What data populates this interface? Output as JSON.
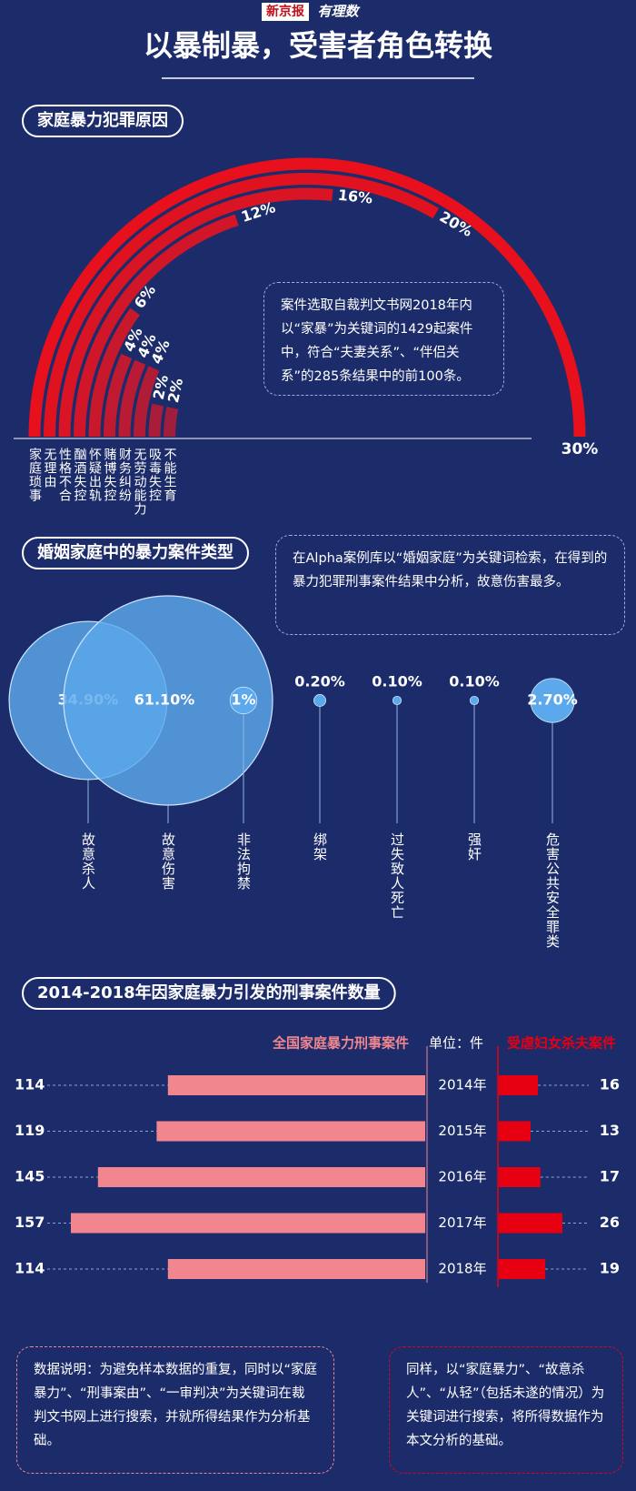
{
  "header": {
    "logo": [
      "新京报",
      "有理数"
    ],
    "title": "以暴制暴，受害者角色转换"
  },
  "chart_data": [
    {
      "type": "radial_bar",
      "title": "家庭暴力犯罪原因",
      "categories": [
        "家庭琐事",
        "无理由",
        "性格不合",
        "酗酒失控",
        "怀疑出轨",
        "赌博失控",
        "财务纠纷",
        "无劳动能力",
        "吸毒失控",
        "不能生育"
      ],
      "values": [
        30,
        20,
        16,
        12,
        6,
        4,
        4,
        4,
        2,
        2
      ],
      "value_labels": [
        "30%",
        "20%",
        "16%",
        "12%",
        "6%",
        "4%",
        "4%",
        "4%",
        "2%",
        "2%"
      ],
      "colors": [
        "#e8101c",
        "#e0121f",
        "#d91424",
        "#d01628",
        "#c8182c",
        "#c01a30",
        "#b81b33",
        "#b01c36",
        "#a81d39",
        "#a01e3c"
      ],
      "note": "案件选取自裁判文书网2018年内以“家暴”为关键词的1429起案件中，符合“夫妻关系”、“伴侣关系”的285条结果中的前100条。"
    },
    {
      "type": "bubble",
      "title": "婚姻家庭中的暴力案件类型",
      "categories": [
        "故意杀人",
        "故意伤害",
        "非法拘禁",
        "绑架",
        "过失致人死亡",
        "强奸",
        "危害公共安全罪类"
      ],
      "values": [
        34.9,
        61.1,
        1,
        0.2,
        0.1,
        0.1,
        2.7
      ],
      "value_labels": [
        "34.90%",
        "61.10%",
        "1%",
        "0.20%",
        "0.10%",
        "0.10%",
        "2.70%"
      ],
      "color": "#5ba8ec",
      "note": "在Alpha案例库以“婚姻家庭”为关键词检索，在得到的暴力犯罪刑事案件结果中分析，故意伤害最多。"
    },
    {
      "type": "diverging_bar",
      "title": "2014-2018年因家庭暴力引发的刑事案件数量",
      "unit": "单位：件",
      "categories": [
        "2014年",
        "2015年",
        "2016年",
        "2017年",
        "2018年"
      ],
      "series": [
        {
          "name": "全国家庭暴力刑事案件",
          "color": "#f2868f",
          "values": [
            114,
            119,
            145,
            157,
            114
          ]
        },
        {
          "name": "受虐妇女杀夫案件",
          "color": "#e60012",
          "values": [
            16,
            13,
            17,
            26,
            19
          ]
        }
      ],
      "notes": [
        "数据说明：为避免样本数据的重复，同时以“家庭暴力”、“刑事案由”、“一审判决”为关键词在裁判文书网上进行搜索，并就所得结果作为分析基础。",
        "同样，以“家庭暴力”、“故意杀人”、“从轻”（包括未遂的情况）为关键词进行搜索，将所得数据作为本文分析的基础。"
      ]
    }
  ]
}
